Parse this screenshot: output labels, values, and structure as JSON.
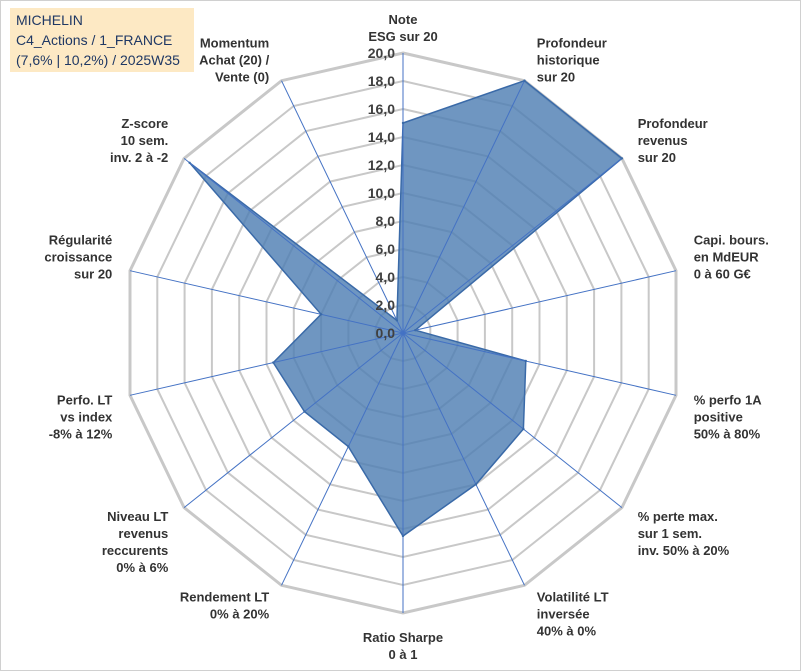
{
  "title_box": {
    "lines": [
      "MICHELIN",
      "C4_Actions / 1_FRANCE",
      "(7,6% | 10,2%) / 2025W35"
    ]
  },
  "colors": {
    "fill": "#4f7fb3",
    "stroke": "#3a6aa8",
    "grid": "#c8c8c8",
    "axis": "#4472c4",
    "title_bg": "#fde9c4",
    "title_text": "#1f3864"
  },
  "chart_data": {
    "type": "radar",
    "rmin": 0,
    "rmax": 20,
    "tick_labels": [
      "0,0",
      "2,0",
      "4,0",
      "6,0",
      "8,0",
      "10,0",
      "12,0",
      "14,0",
      "16,0",
      "18,0",
      "20,0"
    ],
    "categories": [
      [
        "Note",
        "ESG sur 20"
      ],
      [
        "Profondeur",
        "historique",
        "sur 20"
      ],
      [
        "Profondeur",
        "revenus",
        "sur 20"
      ],
      [
        "Capi. bours.",
        "en MdEUR",
        "0 à 60 G€"
      ],
      [
        "% perfo 1A",
        "positive",
        "50% à 80%"
      ],
      [
        "% perte max.",
        "sur 1 sem.",
        "inv. 50% à 20%"
      ],
      [
        "Volatilité LT",
        "inversée",
        "40% à 0%"
      ],
      [
        "Ratio Sharpe",
        "0 à 1"
      ],
      [
        "Rendement LT",
        "0% à 20%"
      ],
      [
        "Niveau LT",
        "revenus",
        "reccurents",
        "0% à 6%"
      ],
      [
        "Perfo. LT",
        "vs index",
        "-8% à 12%"
      ],
      [
        "Régularité",
        "croissance",
        "sur 20"
      ],
      [
        "Z-score",
        "10 sem.",
        "inv. 2 à -2"
      ],
      [
        "Momentum",
        "Achat (20) /",
        "Vente (0)"
      ]
    ],
    "values": [
      15.0,
      20.0,
      20.0,
      0.9,
      9.0,
      11.0,
      12.0,
      14.5,
      9.0,
      9.0,
      9.5,
      6.0,
      19.5,
      1.0
    ]
  }
}
